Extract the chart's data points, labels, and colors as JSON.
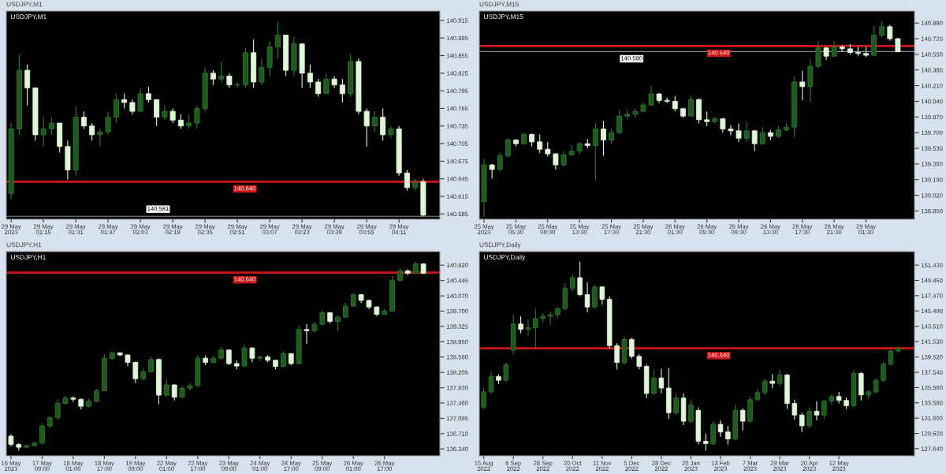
{
  "chart_data": [
    {
      "type": "candlestick",
      "title": "USDJPY,M1",
      "subtitle": "USDJPY,M1",
      "categories": [
        "29 May 2023",
        null,
        null,
        null,
        "29 May 01:15",
        null,
        null,
        null,
        "29 May 01:31",
        null,
        null,
        null,
        "29 May 01:47",
        null,
        null,
        null,
        "29 May 02:03",
        null,
        null,
        null,
        "29 May 02:19",
        null,
        null,
        null,
        "29 May 02:35",
        null,
        null,
        null,
        "29 May 02:51",
        null,
        null,
        null,
        "29 May 03:07",
        null,
        null,
        null,
        "29 May 03:23",
        null,
        null,
        null,
        "29 May 03:39",
        null,
        null,
        null,
        "29 May 03:55",
        null,
        null,
        null,
        "29 May 04:11",
        null,
        null,
        null
      ],
      "ohlc": [
        [
          140.62,
          140.74,
          140.61,
          140.73
        ],
        [
          140.73,
          140.857,
          140.72,
          140.83
        ],
        [
          140.83,
          140.84,
          140.77,
          140.8
        ],
        [
          140.8,
          140.8,
          140.71,
          140.72
        ],
        [
          140.72,
          140.75,
          140.7,
          140.73
        ],
        [
          140.73,
          140.75,
          140.72,
          140.74
        ],
        [
          140.74,
          140.74,
          140.69,
          140.7
        ],
        [
          140.7,
          140.71,
          140.644,
          140.66
        ],
        [
          140.66,
          140.77,
          140.65,
          140.75
        ],
        [
          140.75,
          140.76,
          140.73,
          140.735
        ],
        [
          140.735,
          140.74,
          140.71,
          140.72
        ],
        [
          140.72,
          140.73,
          140.7,
          140.725
        ],
        [
          140.725,
          140.76,
          140.72,
          140.75
        ],
        [
          140.75,
          140.79,
          140.74,
          140.78
        ],
        [
          140.78,
          140.79,
          140.765,
          140.775
        ],
        [
          140.775,
          140.78,
          140.755,
          140.76
        ],
        [
          140.76,
          140.8,
          140.76,
          140.79
        ],
        [
          140.79,
          140.802,
          140.775,
          140.78
        ],
        [
          140.78,
          140.78,
          140.735,
          140.75
        ],
        [
          140.75,
          140.77,
          140.745,
          140.76
        ],
        [
          140.76,
          140.765,
          140.74,
          140.745
        ],
        [
          140.745,
          140.755,
          140.73,
          140.735
        ],
        [
          140.735,
          140.755,
          140.73,
          140.74
        ],
        [
          140.74,
          140.77,
          140.73,
          140.765
        ],
        [
          140.765,
          140.835,
          140.76,
          140.825
        ],
        [
          140.825,
          140.83,
          140.805,
          140.815
        ],
        [
          140.815,
          140.845,
          140.81,
          140.82
        ],
        [
          140.82,
          140.825,
          140.8,
          140.805
        ],
        [
          140.805,
          140.81,
          140.8,
          140.805
        ],
        [
          140.805,
          140.868,
          140.8,
          140.86
        ],
        [
          140.86,
          140.883,
          140.8,
          140.81
        ],
        [
          140.81,
          140.85,
          140.805,
          140.835
        ],
        [
          140.835,
          140.88,
          140.82,
          140.87
        ],
        [
          140.87,
          140.913,
          140.85,
          140.89
        ],
        [
          140.89,
          140.89,
          140.82,
          140.83
        ],
        [
          140.83,
          140.888,
          140.82,
          140.875
        ],
        [
          140.875,
          140.875,
          140.8,
          140.825
        ],
        [
          140.825,
          140.84,
          140.8,
          140.81
        ],
        [
          140.81,
          140.815,
          140.785,
          140.79
        ],
        [
          140.79,
          140.825,
          140.79,
          140.815
        ],
        [
          140.815,
          140.82,
          140.8,
          140.805
        ],
        [
          140.805,
          140.815,
          140.775,
          140.79
        ],
        [
          140.79,
          140.857,
          140.785,
          140.845
        ],
        [
          140.845,
          140.85,
          140.755,
          140.76
        ],
        [
          140.76,
          140.765,
          140.7,
          140.735
        ],
        [
          140.735,
          140.76,
          140.725,
          140.75
        ],
        [
          140.75,
          140.765,
          140.71,
          140.72
        ],
        [
          140.72,
          140.735,
          140.715,
          140.73
        ],
        [
          140.73,
          140.735,
          140.65,
          140.655
        ],
        [
          140.655,
          140.66,
          140.625,
          140.63
        ],
        [
          140.63,
          140.645,
          140.625,
          140.64
        ],
        [
          140.64,
          140.645,
          140.581,
          140.583
        ]
      ],
      "ylim": [
        140.576,
        140.931
      ],
      "yticks": [
        {
          "value": 140.585,
          "label": "140.585"
        },
        {
          "value": 140.615,
          "label": "140.615"
        },
        {
          "value": 140.645,
          "label": "140.645"
        },
        {
          "value": 140.675,
          "label": "140.675"
        },
        {
          "value": 140.705,
          "label": "140.705"
        },
        {
          "value": 140.735,
          "label": "140.735"
        },
        {
          "value": 140.765,
          "label": "140.765"
        },
        {
          "value": 140.795,
          "label": "140.795"
        },
        {
          "value": 140.825,
          "label": "140.825"
        },
        {
          "value": 140.855,
          "label": "140.855"
        },
        {
          "value": 140.885,
          "label": "140.885"
        },
        {
          "value": 140.915,
          "label": "140.915"
        }
      ],
      "ref_lines": [
        {
          "axis": "y",
          "value": 140.64,
          "label": "140.640",
          "color": "#d01414"
        },
        {
          "axis": "y",
          "value": 140.581,
          "label": "140.581",
          "color": "#8c8c8c"
        }
      ]
    },
    {
      "type": "candlestick",
      "title": "USDJPY,M15",
      "subtitle": "USDJPY,M15",
      "categories": [
        "25 May 2023",
        null,
        null,
        null,
        "25 May 05:30",
        null,
        null,
        null,
        "25 May 09:30",
        null,
        null,
        null,
        "25 May 13:30",
        null,
        null,
        null,
        "25 May 17:30",
        null,
        null,
        null,
        "25 May 21:30",
        null,
        null,
        null,
        "26 May 01:30",
        null,
        null,
        null,
        "26 May 05:30",
        null,
        null,
        null,
        "26 May 09:30",
        null,
        null,
        null,
        "26 May 13:30",
        null,
        null,
        null,
        "26 May 17:30",
        null,
        null,
        null,
        "26 May 21:30",
        null,
        null,
        null,
        "29 May 01:30",
        null,
        null,
        null,
        null
      ],
      "ohlc": [
        [
          138.95,
          139.42,
          138.79,
          139.35
        ],
        [
          139.35,
          139.36,
          139.2,
          139.3
        ],
        [
          139.3,
          139.48,
          139.28,
          139.45
        ],
        [
          139.45,
          139.64,
          139.43,
          139.62
        ],
        [
          139.62,
          139.63,
          139.55,
          139.58
        ],
        [
          139.58,
          139.7,
          139.57,
          139.68
        ],
        [
          139.68,
          139.69,
          139.55,
          139.6
        ],
        [
          139.6,
          139.68,
          139.48,
          139.52
        ],
        [
          139.52,
          139.6,
          139.44,
          139.47
        ],
        [
          139.47,
          139.48,
          139.3,
          139.35
        ],
        [
          139.35,
          139.5,
          139.33,
          139.46
        ],
        [
          139.46,
          139.57,
          139.45,
          139.5
        ],
        [
          139.5,
          139.6,
          139.47,
          139.58
        ],
        [
          139.58,
          139.63,
          139.53,
          139.56
        ],
        [
          139.56,
          139.8,
          139.18,
          139.74
        ],
        [
          139.74,
          139.83,
          139.45,
          139.62
        ],
        [
          139.62,
          139.74,
          139.58,
          139.7
        ],
        [
          139.7,
          139.94,
          139.68,
          139.88
        ],
        [
          139.88,
          139.95,
          139.84,
          139.9
        ],
        [
          139.9,
          139.96,
          139.86,
          139.93
        ],
        [
          139.93,
          140.03,
          139.92,
          140.0
        ],
        [
          140.0,
          140.21,
          139.99,
          140.12
        ],
        [
          140.12,
          140.13,
          140.02,
          140.05
        ],
        [
          140.05,
          140.08,
          140.02,
          140.04
        ],
        [
          140.04,
          140.1,
          139.93,
          139.96
        ],
        [
          139.96,
          139.97,
          139.86,
          139.88
        ],
        [
          139.88,
          140.1,
          139.87,
          140.06
        ],
        [
          140.06,
          140.07,
          139.8,
          139.84
        ],
        [
          139.84,
          139.93,
          139.77,
          139.82
        ],
        [
          139.82,
          139.87,
          139.8,
          139.85
        ],
        [
          139.85,
          139.86,
          139.7,
          139.74
        ],
        [
          139.74,
          139.78,
          139.67,
          139.72
        ],
        [
          139.72,
          139.8,
          139.6,
          139.64
        ],
        [
          139.64,
          139.82,
          139.6,
          139.72
        ],
        [
          139.72,
          139.73,
          139.5,
          139.58
        ],
        [
          139.58,
          139.76,
          139.57,
          139.7
        ],
        [
          139.7,
          139.73,
          139.62,
          139.66
        ],
        [
          139.66,
          139.77,
          139.64,
          139.73
        ],
        [
          139.73,
          139.8,
          139.71,
          139.76
        ],
        [
          139.76,
          140.31,
          139.65,
          140.25
        ],
        [
          140.25,
          140.37,
          140.05,
          140.2
        ],
        [
          140.2,
          140.5,
          140.03,
          140.42
        ],
        [
          140.42,
          140.69,
          140.4,
          140.62
        ],
        [
          140.62,
          140.63,
          140.49,
          140.53
        ],
        [
          140.53,
          140.7,
          140.52,
          140.63
        ],
        [
          140.63,
          140.65,
          140.58,
          140.61
        ],
        [
          140.61,
          140.66,
          140.55,
          140.57
        ],
        [
          140.57,
          140.63,
          140.53,
          140.56
        ],
        [
          140.56,
          140.63,
          140.52,
          140.54
        ],
        [
          140.54,
          140.86,
          140.53,
          140.76
        ],
        [
          140.76,
          140.91,
          140.74,
          140.85
        ],
        [
          140.85,
          140.87,
          140.7,
          140.72
        ],
        [
          140.72,
          140.73,
          140.57,
          140.58
        ]
      ],
      "ylim": [
        138.76,
        141.02
      ],
      "yticks": [
        {
          "value": 138.85,
          "label": "138.850"
        },
        {
          "value": 139.02,
          "label": "139.020"
        },
        {
          "value": 139.19,
          "label": "139.190"
        },
        {
          "value": 139.36,
          "label": "139.360"
        },
        {
          "value": 139.53,
          "label": "139.530"
        },
        {
          "value": 139.7,
          "label": "139.700"
        },
        {
          "value": 139.87,
          "label": "139.870"
        },
        {
          "value": 140.04,
          "label": "140.040"
        },
        {
          "value": 140.21,
          "label": "140.210"
        },
        {
          "value": 140.38,
          "label": "140.380"
        },
        {
          "value": 140.55,
          "label": "140.550"
        },
        {
          "value": 140.72,
          "label": "140.720"
        },
        {
          "value": 140.89,
          "label": "140.890"
        }
      ],
      "ref_lines": [
        {
          "axis": "y",
          "value": 140.64,
          "label": "140.640",
          "color": "#d01414"
        },
        {
          "axis": "y",
          "value": 140.58,
          "label": "140.580",
          "color": "#8c8c8c"
        }
      ]
    },
    {
      "type": "candlestick",
      "title": "USDJPY,H1",
      "subtitle": "USDJPY,H1",
      "categories": [
        "16 May 2023",
        null,
        null,
        null,
        "17 May 09:00",
        null,
        null,
        null,
        "18 May 01:00",
        null,
        null,
        null,
        "18 May 17:00",
        null,
        null,
        null,
        "19 May 09:00",
        null,
        null,
        null,
        "22 May 01:00",
        null,
        null,
        null,
        "22 May 17:00",
        null,
        null,
        null,
        "23 May 09:00",
        null,
        null,
        null,
        "24 May 01:00",
        null,
        null,
        null,
        "24 May 17:00",
        null,
        null,
        null,
        "25 May 09:00",
        null,
        null,
        null,
        "26 May 01:00",
        null,
        null,
        null,
        "26 May 17:00",
        null,
        null,
        null,
        null,
        null
      ],
      "ohlc": [
        [
          136.65,
          136.7,
          136.4,
          136.45
        ],
        [
          136.45,
          136.48,
          136.3,
          136.38
        ],
        [
          136.38,
          136.44,
          136.35,
          136.42
        ],
        [
          136.42,
          136.52,
          136.4,
          136.48
        ],
        [
          136.48,
          136.95,
          136.45,
          136.9
        ],
        [
          136.9,
          137.15,
          136.85,
          137.1
        ],
        [
          137.1,
          137.55,
          137.05,
          137.45
        ],
        [
          137.45,
          137.65,
          137.42,
          137.58
        ],
        [
          137.58,
          137.62,
          137.48,
          137.55
        ],
        [
          137.55,
          137.57,
          137.3,
          137.38
        ],
        [
          137.38,
          137.57,
          137.35,
          137.5
        ],
        [
          137.5,
          137.8,
          137.48,
          137.76
        ],
        [
          137.76,
          138.65,
          137.74,
          138.55
        ],
        [
          138.55,
          138.72,
          138.5,
          138.68
        ],
        [
          138.68,
          138.7,
          138.6,
          138.63
        ],
        [
          138.63,
          138.65,
          138.35,
          138.45
        ],
        [
          138.45,
          138.47,
          137.95,
          138.05
        ],
        [
          138.05,
          138.3,
          138.0,
          138.22
        ],
        [
          138.22,
          138.6,
          138.2,
          138.52
        ],
        [
          138.52,
          138.55,
          137.43,
          137.65
        ],
        [
          137.65,
          138.05,
          137.6,
          137.9
        ],
        [
          137.9,
          137.92,
          137.52,
          137.6
        ],
        [
          137.6,
          137.88,
          137.58,
          137.82
        ],
        [
          137.82,
          137.95,
          137.76,
          137.88
        ],
        [
          137.88,
          138.62,
          137.85,
          138.55
        ],
        [
          138.55,
          138.62,
          138.38,
          138.45
        ],
        [
          138.45,
          138.6,
          138.42,
          138.55
        ],
        [
          138.55,
          138.83,
          138.52,
          138.75
        ],
        [
          138.75,
          138.77,
          138.38,
          138.42
        ],
        [
          138.42,
          138.5,
          138.28,
          138.36
        ],
        [
          138.36,
          138.88,
          138.33,
          138.8
        ],
        [
          138.8,
          138.82,
          138.45,
          138.55
        ],
        [
          138.55,
          138.62,
          138.48,
          138.58
        ],
        [
          138.58,
          138.62,
          138.45,
          138.5
        ],
        [
          138.5,
          138.52,
          138.28,
          138.35
        ],
        [
          138.35,
          138.72,
          138.33,
          138.66
        ],
        [
          138.66,
          138.68,
          138.38,
          138.42
        ],
        [
          138.42,
          139.35,
          138.4,
          139.25
        ],
        [
          139.25,
          139.38,
          138.9,
          139.22
        ],
        [
          139.22,
          139.45,
          139.18,
          139.38
        ],
        [
          139.38,
          139.72,
          139.35,
          139.66
        ],
        [
          139.66,
          139.68,
          139.4,
          139.45
        ],
        [
          139.45,
          139.6,
          139.2,
          139.55
        ],
        [
          139.55,
          139.9,
          139.53,
          139.82
        ],
        [
          139.82,
          140.15,
          139.8,
          140.1
        ],
        [
          140.1,
          140.12,
          139.9,
          139.96
        ],
        [
          139.96,
          139.98,
          139.75,
          139.8
        ],
        [
          139.8,
          139.82,
          139.58,
          139.62
        ],
        [
          139.62,
          139.75,
          139.6,
          139.7
        ],
        [
          139.7,
          140.55,
          139.68,
          140.45
        ],
        [
          140.45,
          140.75,
          140.42,
          140.68
        ],
        [
          140.68,
          140.72,
          140.58,
          140.62
        ],
        [
          140.62,
          140.9,
          140.6,
          140.85
        ],
        [
          140.85,
          140.86,
          140.6,
          140.62
        ]
      ],
      "ylim": [
        136.17,
        141.15
      ],
      "yticks": [
        {
          "value": 136.34,
          "label": "136.340"
        },
        {
          "value": 136.71,
          "label": "136.710"
        },
        {
          "value": 137.085,
          "label": "137.085"
        },
        {
          "value": 137.46,
          "label": "137.460"
        },
        {
          "value": 137.83,
          "label": "137.830"
        },
        {
          "value": 138.205,
          "label": "138.205"
        },
        {
          "value": 138.58,
          "label": "138.580"
        },
        {
          "value": 138.95,
          "label": "138.950"
        },
        {
          "value": 139.325,
          "label": "139.325"
        },
        {
          "value": 139.7,
          "label": "139.700"
        },
        {
          "value": 140.07,
          "label": "140.070"
        },
        {
          "value": 140.445,
          "label": "140.445"
        },
        {
          "value": 140.82,
          "label": "140.820"
        }
      ],
      "ref_lines": [
        {
          "axis": "y",
          "value": 140.64,
          "label": "140.640",
          "color": "#d01414"
        }
      ]
    },
    {
      "type": "candlestick",
      "title": "USDJPY,Daily",
      "subtitle": "USDJPY,Daily",
      "categories": [
        "15 Aug 2022",
        null,
        null,
        null,
        "6 Sep 2022",
        null,
        null,
        null,
        "28 Sep 2022",
        null,
        null,
        null,
        "20 Oct 2022",
        null,
        null,
        null,
        "11 Nov 2022",
        null,
        null,
        null,
        "5 Dec 2022",
        null,
        null,
        null,
        "28 Dec 2022",
        null,
        null,
        null,
        "20 Jan 2023",
        null,
        null,
        null,
        "13 Feb 2023",
        null,
        null,
        null,
        "7 Mar 2023",
        null,
        null,
        null,
        "29 Mar 2023",
        null,
        null,
        null,
        "20 Apr 2023",
        null,
        null,
        null,
        "12 May 2023",
        null,
        null,
        null,
        null,
        null,
        null,
        null,
        null
      ],
      "ohlc": [
        [
          133.0,
          135.5,
          132.7,
          135.0
        ],
        [
          135.0,
          137.6,
          134.8,
          137.0
        ],
        [
          137.0,
          137.3,
          136.0,
          136.5
        ],
        [
          136.5,
          138.8,
          136.3,
          138.5
        ],
        [
          140.4,
          145.0,
          139.8,
          143.8
        ],
        [
          143.8,
          144.8,
          142.6,
          143.1
        ],
        [
          143.1,
          144.4,
          142.2,
          143.3
        ],
        [
          143.3,
          145.8,
          140.5,
          144.5
        ],
        [
          144.5,
          145.2,
          143.9,
          144.8
        ],
        [
          144.8,
          145.4,
          143.7,
          145.0
        ],
        [
          145.0,
          146.0,
          144.6,
          145.8
        ],
        [
          145.8,
          149.1,
          145.6,
          148.4
        ],
        [
          148.4,
          150.3,
          148.0,
          149.8
        ],
        [
          149.8,
          151.9,
          147.4,
          147.6
        ],
        [
          147.6,
          149.2,
          145.3,
          146.0
        ],
        [
          146.0,
          148.9,
          145.8,
          148.6
        ],
        [
          148.6,
          148.7,
          146.3,
          147.0
        ],
        [
          147.0,
          147.4,
          140.6,
          141.0
        ],
        [
          141.0,
          141.3,
          137.9,
          138.8
        ],
        [
          138.8,
          142.2,
          138.5,
          141.8
        ],
        [
          141.8,
          142.0,
          139.3,
          139.6
        ],
        [
          139.6,
          139.9,
          137.9,
          138.3
        ],
        [
          138.3,
          138.6,
          134.2,
          134.8
        ],
        [
          134.8,
          137.9,
          134.6,
          136.8
        ],
        [
          136.8,
          138.0,
          134.8,
          135.5
        ],
        [
          135.5,
          138.1,
          131.5,
          132.3
        ],
        [
          132.3,
          134.8,
          132.0,
          134.2
        ],
        [
          134.2,
          134.8,
          130.7,
          131.2
        ],
        [
          131.2,
          134.0,
          131.0,
          133.3
        ],
        [
          132.6,
          133.0,
          128.2,
          128.6
        ],
        [
          128.6,
          129.6,
          127.4,
          128.3
        ],
        [
          128.3,
          131.2,
          128.1,
          130.8
        ],
        [
          130.8,
          131.3,
          129.2,
          129.8
        ],
        [
          129.8,
          130.6,
          128.2,
          128.9
        ],
        [
          128.9,
          133.3,
          128.7,
          132.6
        ],
        [
          132.6,
          132.9,
          130.0,
          131.2
        ],
        [
          131.2,
          134.4,
          131.0,
          134.0
        ],
        [
          134.0,
          135.4,
          133.8,
          134.9
        ],
        [
          134.9,
          136.7,
          134.6,
          136.4
        ],
        [
          136.4,
          137.3,
          135.5,
          136.1
        ],
        [
          136.1,
          137.9,
          135.7,
          137.2
        ],
        [
          137.2,
          137.3,
          132.8,
          133.5
        ],
        [
          133.5,
          134.0,
          131.4,
          132.0
        ],
        [
          132.0,
          132.3,
          129.8,
          130.6
        ],
        [
          130.6,
          133.0,
          130.3,
          132.5
        ],
        [
          132.5,
          133.8,
          131.3,
          132.0
        ],
        [
          132.0,
          134.0,
          131.5,
          133.8
        ],
        [
          133.8,
          134.7,
          133.3,
          134.4
        ],
        [
          134.4,
          135.0,
          133.5,
          133.9
        ],
        [
          133.9,
          134.3,
          132.8,
          133.2
        ],
        [
          133.2,
          137.9,
          133.0,
          137.4
        ],
        [
          137.4,
          137.6,
          133.9,
          134.6
        ],
        [
          134.6,
          135.3,
          134.0,
          135.0
        ],
        [
          135.0,
          136.8,
          134.8,
          136.5
        ],
        [
          136.5,
          138.9,
          136.3,
          138.6
        ],
        [
          138.6,
          140.6,
          138.4,
          140.3
        ],
        [
          140.3,
          140.9,
          140.1,
          140.64
        ]
      ],
      "ylim": [
        126.71,
        153.18
      ],
      "yticks": [
        {
          "value": 127.64,
          "label": "127.640"
        },
        {
          "value": 129.62,
          "label": "129.620"
        },
        {
          "value": 131.6,
          "label": "131.600"
        },
        {
          "value": 133.58,
          "label": "133.580"
        },
        {
          "value": 135.56,
          "label": "135.560"
        },
        {
          "value": 137.54,
          "label": "137.540"
        },
        {
          "value": 139.52,
          "label": "139.520"
        },
        {
          "value": 141.53,
          "label": "141.530"
        },
        {
          "value": 143.51,
          "label": "143.510"
        },
        {
          "value": 145.49,
          "label": "145.490"
        },
        {
          "value": 147.47,
          "label": "147.470"
        },
        {
          "value": 149.45,
          "label": "149.450"
        },
        {
          "value": 151.43,
          "label": "151.430"
        }
      ],
      "ref_lines": [
        {
          "axis": "y",
          "value": 140.64,
          "label": "140.640",
          "color": "#d01414"
        }
      ]
    }
  ]
}
